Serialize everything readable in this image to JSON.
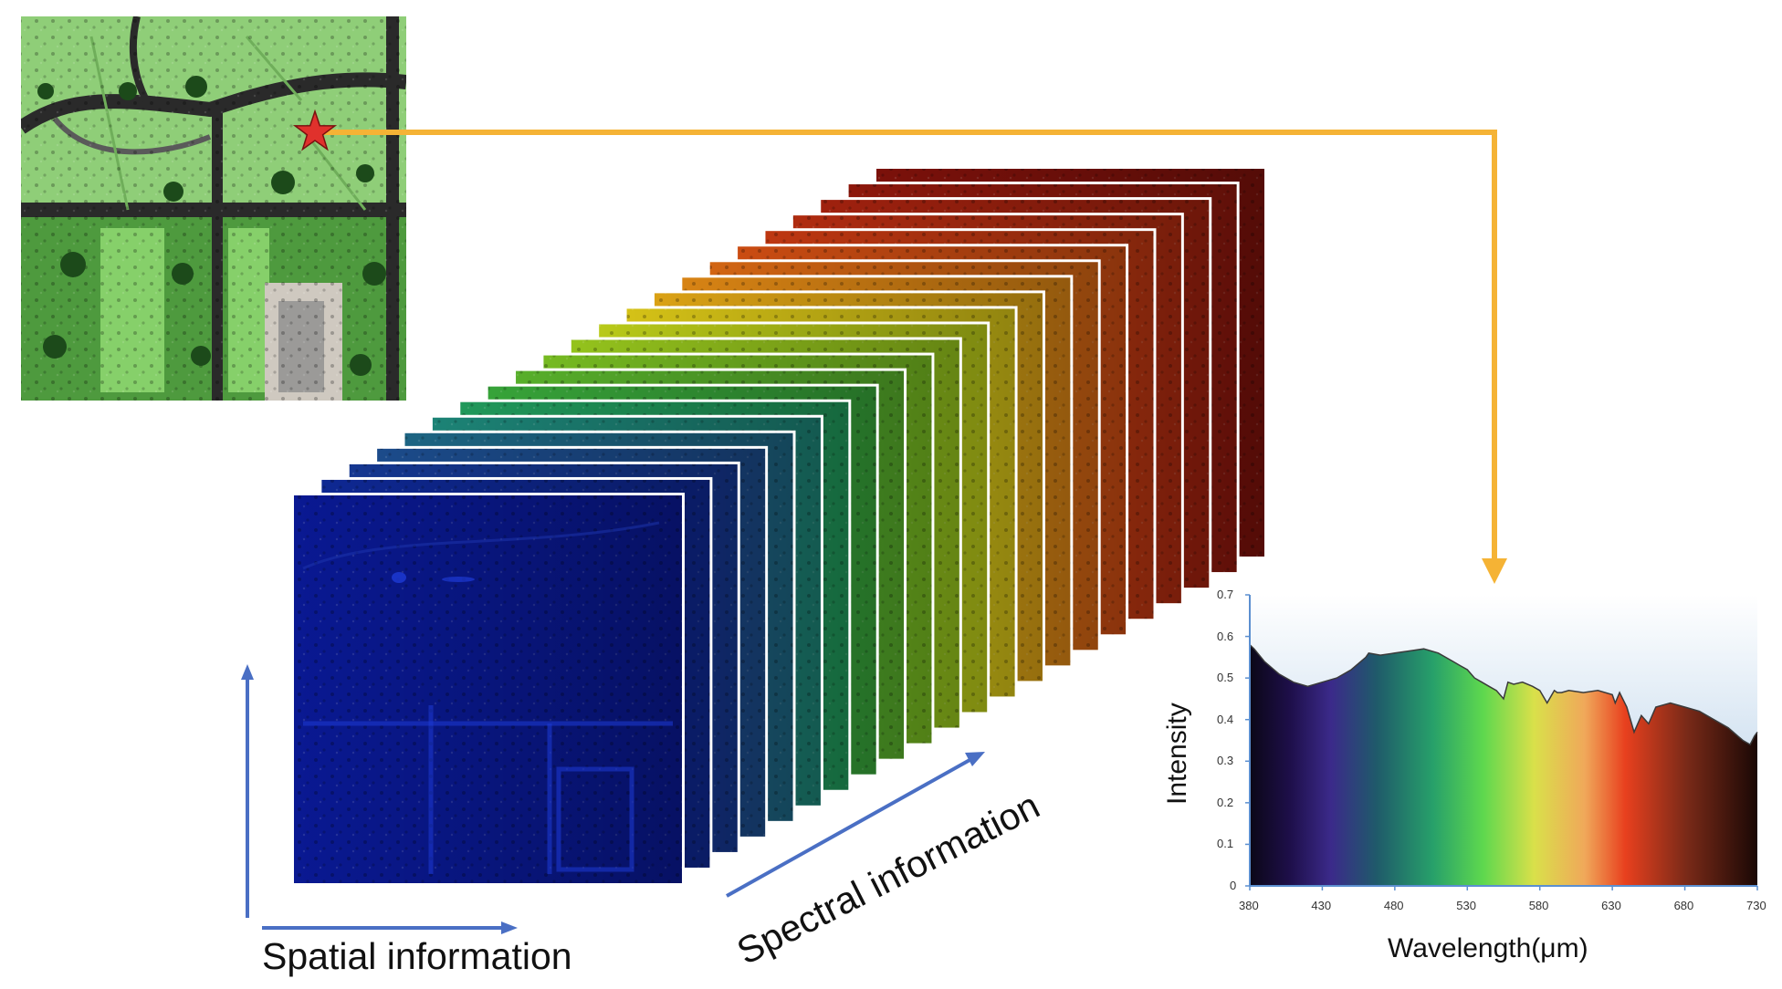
{
  "labels": {
    "spatial": "Spatial information",
    "spectral": "Spectral information"
  },
  "colors": {
    "arrow_blue": "#4a6fc4",
    "connector_orange": "#f5b335",
    "star_red": "#e0312c"
  },
  "cube": {
    "layer_count": 22,
    "band_colors": [
      "#0a1a9a",
      "#0f2a9a",
      "#163a98",
      "#1d4f92",
      "#1f6a8a",
      "#1e8a7c",
      "#22a05f",
      "#3aac3c",
      "#5cb82d",
      "#7cc423",
      "#9ccd1e",
      "#c2d41a",
      "#e0cc18",
      "#e6aa16",
      "#e38a15",
      "#dd6a14",
      "#d55013",
      "#c83a12",
      "#b92e11",
      "#a8230f",
      "#95190d",
      "#82120b"
    ]
  },
  "chart_data": {
    "type": "area",
    "xlabel": "Wavelength(μm)",
    "ylabel": "Intensity",
    "xlim": [
      380,
      730
    ],
    "ylim": [
      0,
      0.7
    ],
    "x_ticks": [
      "380",
      "430",
      "480",
      "530",
      "580",
      "630",
      "680",
      "730"
    ],
    "y_ticks": [
      "0",
      "0.1",
      "0.2",
      "0.3",
      "0.4",
      "0.5",
      "0.6",
      "0.7"
    ],
    "x": [
      380,
      383,
      390,
      400,
      410,
      420,
      430,
      440,
      450,
      460,
      462,
      470,
      480,
      490,
      500,
      505,
      510,
      520,
      525,
      530,
      535,
      540,
      545,
      550,
      555,
      558,
      562,
      568,
      575,
      580,
      585,
      590,
      592,
      595,
      600,
      610,
      620,
      630,
      632,
      635,
      640,
      645,
      650,
      655,
      660,
      670,
      680,
      690,
      700,
      710,
      720,
      725,
      728,
      730
    ],
    "y": [
      0.58,
      0.57,
      0.54,
      0.51,
      0.49,
      0.48,
      0.49,
      0.5,
      0.52,
      0.55,
      0.56,
      0.555,
      0.56,
      0.565,
      0.57,
      0.565,
      0.56,
      0.54,
      0.53,
      0.52,
      0.5,
      0.49,
      0.48,
      0.47,
      0.45,
      0.49,
      0.485,
      0.49,
      0.48,
      0.47,
      0.44,
      0.47,
      0.465,
      0.465,
      0.47,
      0.465,
      0.47,
      0.46,
      0.44,
      0.465,
      0.43,
      0.37,
      0.41,
      0.39,
      0.43,
      0.44,
      0.43,
      0.42,
      0.4,
      0.38,
      0.35,
      0.34,
      0.36,
      0.37
    ],
    "grid": false
  }
}
